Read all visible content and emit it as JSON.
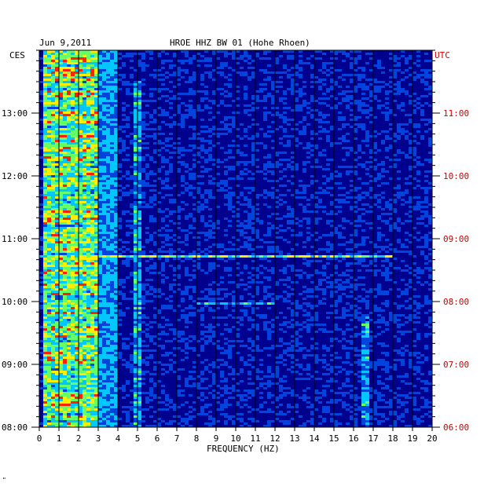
{
  "header": {
    "date": "Jun 9,2011",
    "station": "HROE HHZ BW 01 (Hohe Rhoen)"
  },
  "footer": {
    "mark": "\""
  },
  "chart_data": {
    "type": "heatmap",
    "title": "HROE HHZ BW 01 (Hohe Rhoen)",
    "date": "Jun 9,2011",
    "xlabel": "FREQUENCY (HZ)",
    "left_axis_label": "CES",
    "right_axis_label": "UTC",
    "x_ticks": [
      "0",
      "1",
      "2",
      "3",
      "4",
      "5",
      "6",
      "7",
      "8",
      "9",
      "10",
      "11",
      "12",
      "13",
      "14",
      "15",
      "16",
      "17",
      "18",
      "19",
      "20"
    ],
    "xlim": [
      0,
      20
    ],
    "y_ticks_left": [
      "13:00",
      "12:00",
      "11:00",
      "10:00",
      "09:00",
      "08:00"
    ],
    "y_ticks_right": [
      "11:00",
      "10:00",
      "09:00",
      "08:00",
      "07:00",
      "06:00"
    ],
    "y_tick_hours": [
      13,
      12,
      11,
      10,
      9,
      8
    ],
    "ylim_hours_ces": [
      8.0,
      14.0
    ],
    "grid_vertical": true,
    "colormap": [
      "#000088",
      "#0044dd",
      "#00c8ff",
      "#66ff66",
      "#ffee00",
      "#ff2200"
    ],
    "background": "#00008f",
    "grid_color": "#000000",
    "utc_color": "#cc0000",
    "features": [
      {
        "name": "low-frequency band",
        "freq_hz": [
          0.2,
          3.0
        ],
        "hours": [
          8.0,
          14.0
        ],
        "intensity": 0.85
      },
      {
        "name": "5 Hz line",
        "freq_hz": [
          4.9,
          5.1
        ],
        "hours": [
          8.0,
          13.5
        ],
        "intensity": 0.55
      },
      {
        "name": "16.7 Hz line",
        "freq_hz": [
          16.5,
          16.8
        ],
        "hours": [
          8.0,
          9.8
        ],
        "intensity": 0.5
      },
      {
        "name": "broadband event",
        "freq_hz": [
          0.0,
          18.0
        ],
        "hours": [
          10.7,
          10.75
        ],
        "intensity": 0.8
      },
      {
        "name": "broadband event",
        "freq_hz": [
          8.0,
          12.0
        ],
        "hours": [
          9.95,
          10.0
        ],
        "intensity": 0.55
      }
    ]
  }
}
